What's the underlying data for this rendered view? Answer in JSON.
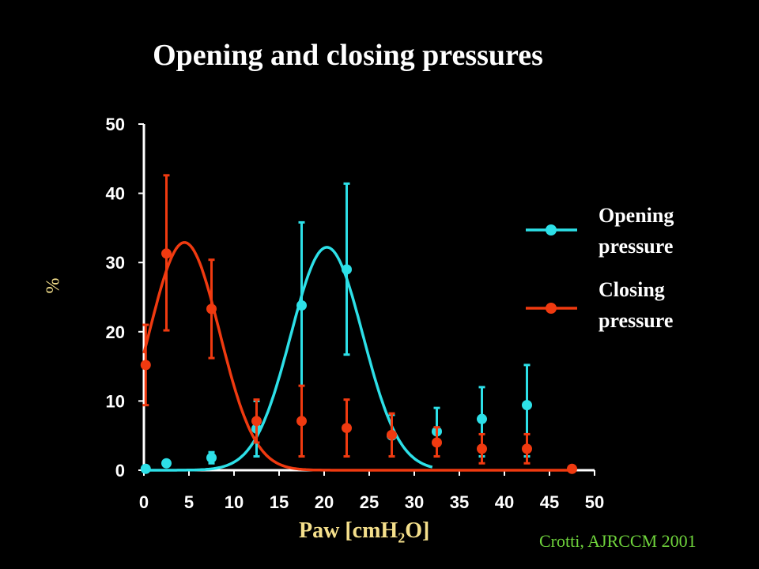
{
  "chart_data": {
    "type": "line",
    "title": "Opening and closing pressures",
    "ylabel": "%",
    "xlabel": {
      "prefix": "Paw [cmH",
      "sub": "2",
      "suffix": "O]"
    },
    "xlim": [
      0,
      50
    ],
    "ylim": [
      0,
      50
    ],
    "xticks": [
      0,
      5,
      10,
      15,
      20,
      25,
      30,
      35,
      40,
      45,
      50
    ],
    "yticks": [
      0,
      10,
      20,
      30,
      40,
      50
    ],
    "grid": false,
    "legend_position": "right",
    "series": [
      {
        "name_lines": [
          "Opening",
          "pressure"
        ],
        "color": "#2de0e8",
        "points": [
          {
            "x": 0.2,
            "y": 0.2
          },
          {
            "x": 2.5,
            "y": 1.0
          },
          {
            "x": 7.5,
            "y": 1.8,
            "lo": 1.0,
            "hi": 2.6
          },
          {
            "x": 12.5,
            "y": 6.0,
            "lo": 2.0,
            "hi": 10.0
          },
          {
            "x": 17.5,
            "y": 23.8,
            "lo": 2.0,
            "hi": 35.8
          },
          {
            "x": 22.5,
            "y": 29.0,
            "lo": 16.7,
            "hi": 41.4
          },
          {
            "x": 27.5,
            "y": 5.0,
            "lo": 2.0,
            "hi": 8.0
          },
          {
            "x": 32.5,
            "y": 5.6,
            "lo": 2.0,
            "hi": 9.0
          },
          {
            "x": 37.5,
            "y": 7.4,
            "lo": 2.0,
            "hi": 12.0
          },
          {
            "x": 42.5,
            "y": 9.4,
            "lo": 2.0,
            "hi": 15.2
          }
        ],
        "fit": {
          "amplitude": 32.2,
          "mean": 20.3,
          "sd": 4.0,
          "x_from": 0,
          "x_to": 32
        }
      },
      {
        "name_lines": [
          "Closing",
          "pressure"
        ],
        "color": "#f03a10",
        "points": [
          {
            "x": 0.2,
            "y": 15.2,
            "lo": 9.4,
            "hi": 21.0
          },
          {
            "x": 2.5,
            "y": 31.3,
            "lo": 20.2,
            "hi": 42.6
          },
          {
            "x": 7.5,
            "y": 23.3,
            "lo": 16.2,
            "hi": 30.4
          },
          {
            "x": 12.5,
            "y": 7.1,
            "lo": 4.0,
            "hi": 10.2
          },
          {
            "x": 17.5,
            "y": 7.1,
            "lo": 2.0,
            "hi": 12.2
          },
          {
            "x": 22.5,
            "y": 6.1,
            "lo": 2.0,
            "hi": 10.2
          },
          {
            "x": 27.5,
            "y": 5.1,
            "lo": 2.0,
            "hi": 8.2
          },
          {
            "x": 32.5,
            "y": 4.0,
            "lo": 2.0,
            "hi": 6.2
          },
          {
            "x": 37.5,
            "y": 3.1,
            "lo": 1.0,
            "hi": 5.2
          },
          {
            "x": 42.5,
            "y": 3.1,
            "lo": 1.0,
            "hi": 5.2
          },
          {
            "x": 47.5,
            "y": 0.2
          }
        ],
        "fit": {
          "amplitude": 32.9,
          "mean": 4.5,
          "sd": 3.9,
          "x_from": 0,
          "x_to": 48
        }
      }
    ],
    "credit": "Crotti, AJRCCM 2001"
  }
}
